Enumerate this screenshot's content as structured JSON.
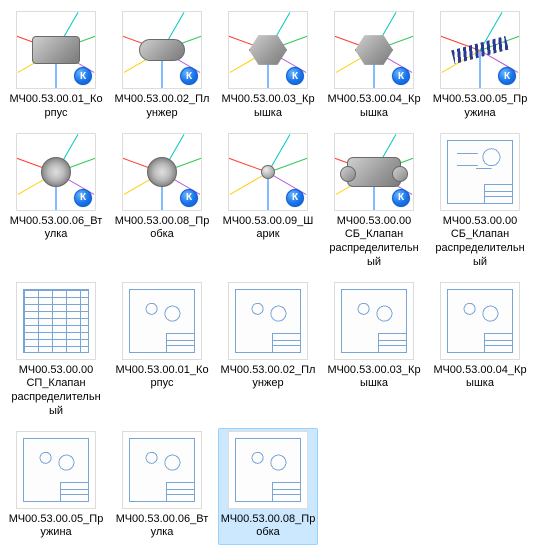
{
  "colors": {
    "selection_bg": "#cce8ff",
    "selection_border": "#99d1ff",
    "badge_gradient": [
      "#6ab7ff",
      "#1a73e8",
      "#0b5fd6"
    ],
    "drawing_line": "#7aa6d6",
    "part_grey": [
      "#cfcfcf",
      "#9a9a9a",
      "#7a7a7a"
    ],
    "spring": "#2a3b8f",
    "guide_lines": [
      "#ff3b30",
      "#34c759",
      "#007aff",
      "#ffcc00",
      "#00c7be",
      "#af52de"
    ],
    "background": "#ffffff",
    "text": "#000000"
  },
  "badge_letter": "К",
  "items": [
    {
      "label": "МЧ00.53.00.01_Корпус",
      "kind": "3d",
      "shape": "block",
      "selected": false
    },
    {
      "label": "МЧ00.53.00.02_Плунжер",
      "kind": "3d",
      "shape": "cyl",
      "selected": false
    },
    {
      "label": "МЧ00.53.00.03_Крышка",
      "kind": "3d",
      "shape": "hex",
      "selected": false
    },
    {
      "label": "МЧ00.53.00.04_Крышка",
      "kind": "3d",
      "shape": "hex",
      "selected": false
    },
    {
      "label": "МЧ00.53.00.05_Пружина",
      "kind": "3d",
      "shape": "spring",
      "selected": false
    },
    {
      "label": "МЧ00.53.00.06_Втулка",
      "kind": "3d",
      "shape": "ring",
      "selected": false
    },
    {
      "label": "МЧ00.53.00.08_Пробка",
      "kind": "3d",
      "shape": "ring",
      "selected": false
    },
    {
      "label": "МЧ00.53.00.09_Шарик",
      "kind": "3d",
      "shape": "ball",
      "selected": false
    },
    {
      "label": "МЧ00.53.00.00 СБ_Клапан распределительный",
      "kind": "3d",
      "shape": "asm",
      "selected": false
    },
    {
      "label": "МЧ00.53.00.00 СБ_Клапан распределительный",
      "kind": "2d",
      "sheet": "asm",
      "selected": false
    },
    {
      "label": "МЧ00.53.00.00 СП_Клапан распределительный",
      "kind": "2d",
      "sheet": "spec",
      "selected": false
    },
    {
      "label": "МЧ00.53.00.01_Корпус",
      "kind": "2d",
      "sheet": "part",
      "selected": false
    },
    {
      "label": "МЧ00.53.00.02_Плунжер",
      "kind": "2d",
      "sheet": "part",
      "selected": false
    },
    {
      "label": "МЧ00.53.00.03_Крышка",
      "kind": "2d",
      "sheet": "part",
      "selected": false
    },
    {
      "label": "МЧ00.53.00.04_Крышка",
      "kind": "2d",
      "sheet": "part",
      "selected": false
    },
    {
      "label": "МЧ00.53.00.05_Пружина",
      "kind": "2d",
      "sheet": "part",
      "selected": false
    },
    {
      "label": "МЧ00.53.00.06_Втулка",
      "kind": "2d",
      "sheet": "part",
      "selected": false
    },
    {
      "label": "МЧ00.53.00.08_Пробка",
      "kind": "2d",
      "sheet": "part",
      "selected": true
    }
  ]
}
